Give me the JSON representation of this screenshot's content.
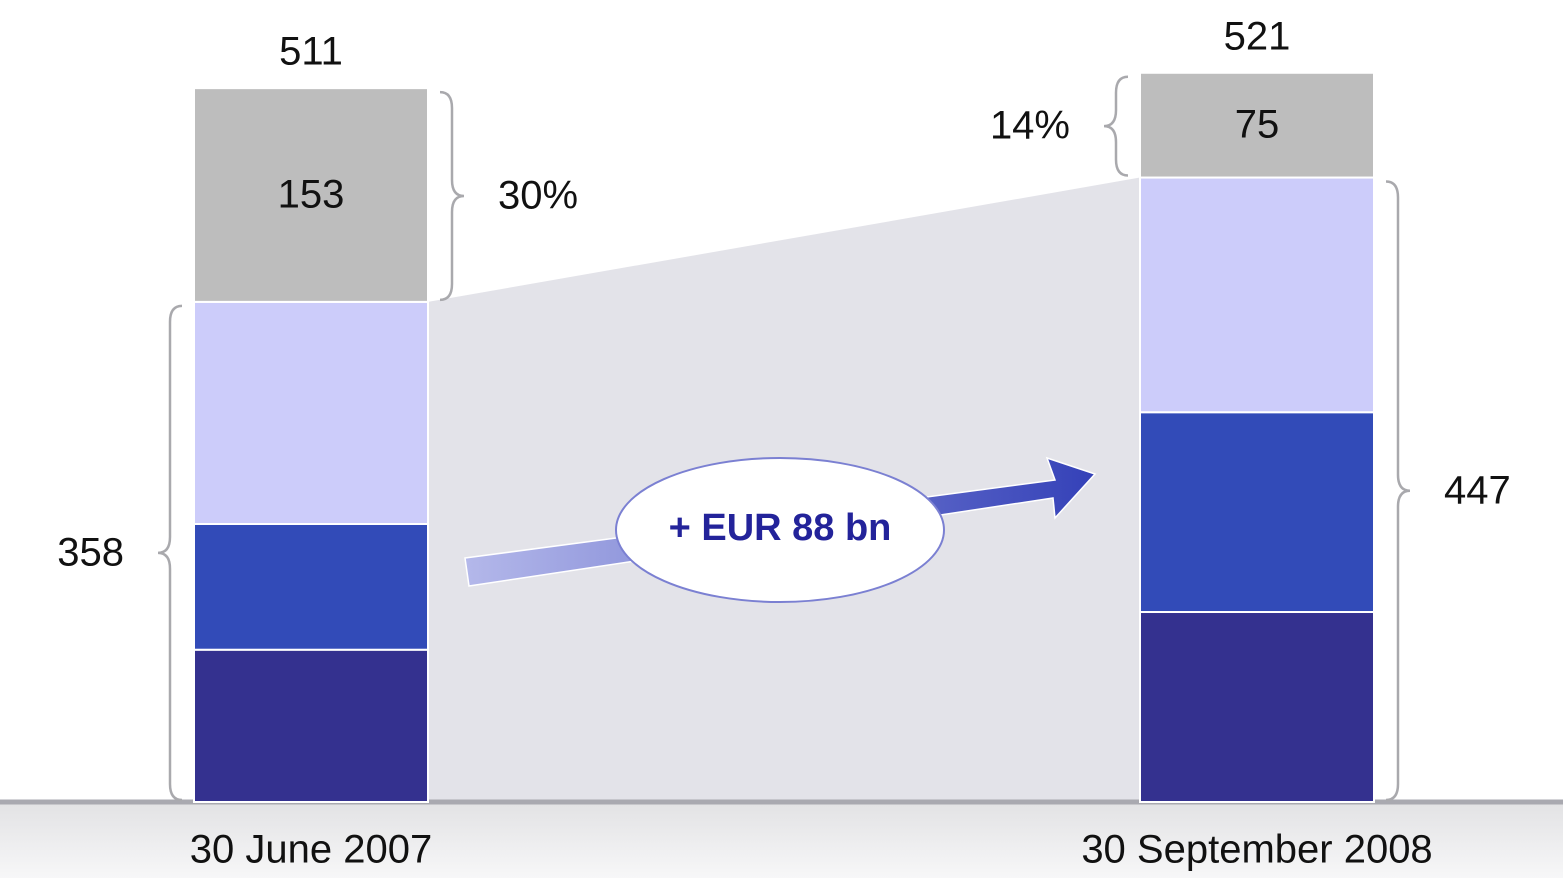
{
  "chart_data": {
    "type": "bar",
    "stacked": true,
    "categories": [
      "30 June 2007",
      "30 September 2008"
    ],
    "series": [
      {
        "color": "#34318f",
        "values": [
          109,
          136
        ]
      },
      {
        "color": "#324bb8",
        "values": [
          90,
          143
        ]
      },
      {
        "color": "#ccccfa",
        "values": [
          159,
          168
        ]
      },
      {
        "color": "#bdbdbd",
        "values": [
          153,
          75
        ]
      }
    ],
    "totals": [
      511,
      521
    ],
    "brackets": [
      {
        "label": "30%",
        "category": 0,
        "from_series": 3,
        "to_series": 3,
        "side": "right"
      },
      {
        "label": "358",
        "category": 0,
        "from_series": 0,
        "to_series": 2,
        "side": "left"
      },
      {
        "label": "14%",
        "category": 1,
        "from_series": 3,
        "to_series": 3,
        "side": "left"
      },
      {
        "label": "447",
        "category": 1,
        "from_series": 0,
        "to_series": 2,
        "side": "right"
      }
    ],
    "arrow_label": "+ EUR 88 bn"
  }
}
